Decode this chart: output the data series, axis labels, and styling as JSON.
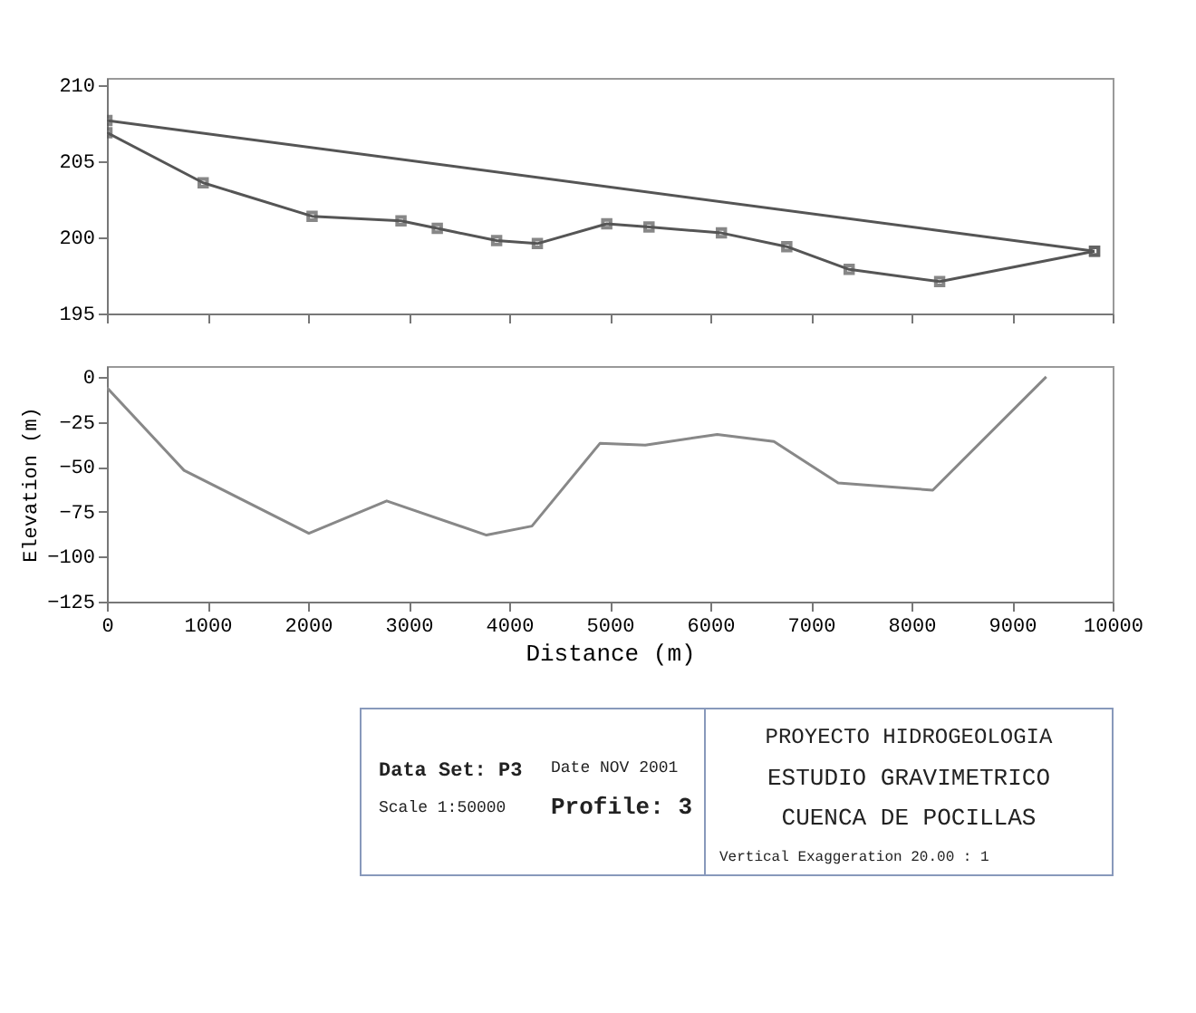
{
  "chart_data": [
    {
      "type": "line",
      "xlim": [
        0,
        10000
      ],
      "xticks": [
        0,
        1000,
        2000,
        3000,
        4000,
        5000,
        6000,
        7000,
        8000,
        9000,
        10000
      ],
      "ylim": [
        195,
        210.5
      ],
      "yticks": [
        195,
        200,
        205,
        210
      ],
      "tick_labels": "y",
      "marker": "square",
      "line_style": "solid",
      "series": [
        {
          "color": "#555555",
          "x": [
            0,
            9820
          ],
          "values": [
            207.7,
            199.1
          ]
        },
        {
          "color": "#555555",
          "x": [
            0,
            957,
            2040,
            2924,
            3285,
            3875,
            4280,
            4970,
            5390,
            6110,
            6760,
            7380,
            8280,
            9820
          ],
          "values": [
            206.9,
            203.6,
            201.4,
            201.1,
            200.6,
            199.8,
            199.6,
            200.9,
            200.7,
            200.3,
            199.4,
            197.9,
            197.1,
            199.1
          ]
        }
      ]
    },
    {
      "type": "line",
      "xlabel": "Distance (m)",
      "ylabel": "Elevation (m)",
      "xlim": [
        0,
        10000
      ],
      "xticks": [
        0,
        1000,
        2000,
        3000,
        4000,
        5000,
        6000,
        7000,
        8000,
        9000,
        10000
      ],
      "ylim": [
        -125,
        6
      ],
      "yticks": [
        0,
        -25,
        -50,
        -75,
        -100,
        -125
      ],
      "line_style": "solid",
      "series": [
        {
          "color": "#888888",
          "x": [
            0,
            767,
            2008,
            2782,
            3774,
            4226,
            4902,
            5353,
            6068,
            6632,
            7271,
            8211,
            9340
          ],
          "values": [
            -6,
            -52,
            -87,
            -69,
            -88,
            -83,
            -37,
            -38,
            -32,
            -36,
            -59,
            -63,
            0
          ]
        }
      ],
      "annotations": [
        "Data Set: P3",
        "Date NOV 2001",
        "Scale 1:50000",
        "Profile: 3",
        "PROYECTO HIDROGEOLOGIA",
        "ESTUDIO GRAVIMETRICO",
        "CUENCA DE POCILLAS",
        "Vertical Exaggeration 20.00 : 1"
      ]
    }
  ]
}
